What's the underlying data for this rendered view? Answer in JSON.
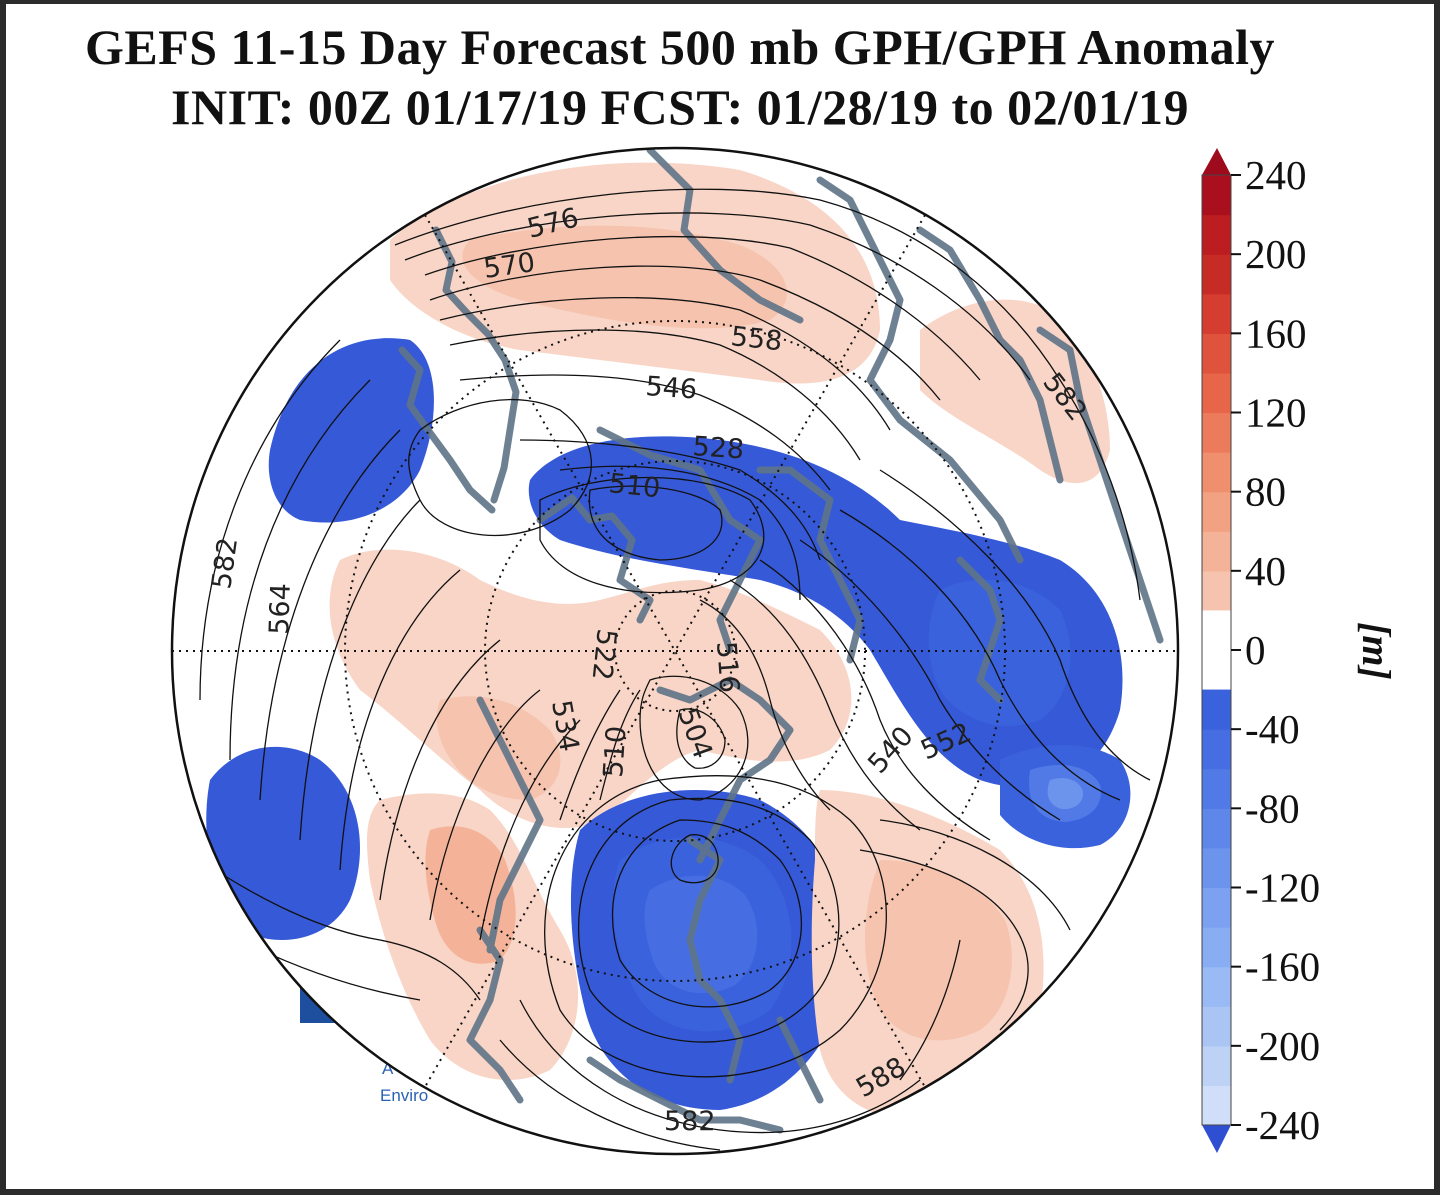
{
  "title": {
    "line1": "GEFS 11-15 Day Forecast 500 mb GPH/GPH Anomaly",
    "line2": "INIT: 00Z 01/17/19   FCST: 01/28/19 to 02/01/19"
  },
  "colorbar": {
    "unit": "[m]",
    "ticks": [
      "240",
      "200",
      "160",
      "120",
      "80",
      "40",
      "0",
      "-40",
      "-80",
      "-120",
      "-160",
      "-200",
      "-240"
    ],
    "neg_colors": [
      "#3659d8",
      "#3b62dd",
      "#466ee2",
      "#527ae6",
      "#5f87ea",
      "#6d94ed",
      "#7ba1f0",
      "#89adf2",
      "#99baf4",
      "#aac5f4",
      "#bdd2f5",
      "#d1defa"
    ],
    "pos_colors": [
      "#f8d5c6",
      "#f6c4ae",
      "#f4b398",
      "#f2a283",
      "#ef8f6e",
      "#ec7b5b",
      "#e7664a",
      "#df523b",
      "#d43d2f",
      "#c72b26",
      "#bb1d21",
      "#aa0f1e"
    ],
    "zero_color": "#ffffff"
  },
  "contour_labels": [
    "576",
    "570",
    "558",
    "546",
    "528",
    "510",
    "582",
    "582",
    "564",
    "522",
    "516",
    "534",
    "510",
    "504",
    "540",
    "552",
    "588",
    "582"
  ],
  "logo_text": [
    "A",
    "Enviro"
  ],
  "anomaly_areas": [
    {
      "name": "west-pacific-ridge",
      "sign": "positive",
      "level": 1
    },
    {
      "name": "west-pacific-ridge-core",
      "sign": "positive",
      "level": 2
    },
    {
      "name": "north-atlantic-edge-ridge",
      "sign": "positive",
      "level": 1
    },
    {
      "name": "north-pacific-trough",
      "sign": "negative",
      "level": 1
    },
    {
      "name": "arctic-canada-trough",
      "sign": "negative",
      "level": 1
    },
    {
      "name": "arctic-canada-trough-core",
      "sign": "negative",
      "level": 2
    },
    {
      "name": "central-siberia-ridge",
      "sign": "positive",
      "level": 1
    },
    {
      "name": "central-siberia-ridge-core",
      "sign": "positive",
      "level": 2
    },
    {
      "name": "europe-scandinavia-trough",
      "sign": "negative",
      "level": 1
    },
    {
      "name": "europe-trough-core",
      "sign": "negative",
      "level": 2
    },
    {
      "name": "europe-trough-inner",
      "sign": "negative",
      "level": 3
    },
    {
      "name": "eastern-asia-trough",
      "sign": "negative",
      "level": 1
    },
    {
      "name": "east-asia-ridge",
      "sign": "positive",
      "level": 1
    },
    {
      "name": "east-asia-ridge-core",
      "sign": "positive",
      "level": 3
    },
    {
      "name": "western-asia-ridge",
      "sign": "positive",
      "level": 1
    },
    {
      "name": "western-asia-ridge-core",
      "sign": "positive",
      "level": 2
    },
    {
      "name": "eastern-atlantic-trough",
      "sign": "negative",
      "level": 2
    },
    {
      "name": "eastern-atlantic-trough-inner",
      "sign": "negative",
      "level": 4
    },
    {
      "name": "eastern-atlantic-trough-core",
      "sign": "negative",
      "level": 6
    }
  ]
}
